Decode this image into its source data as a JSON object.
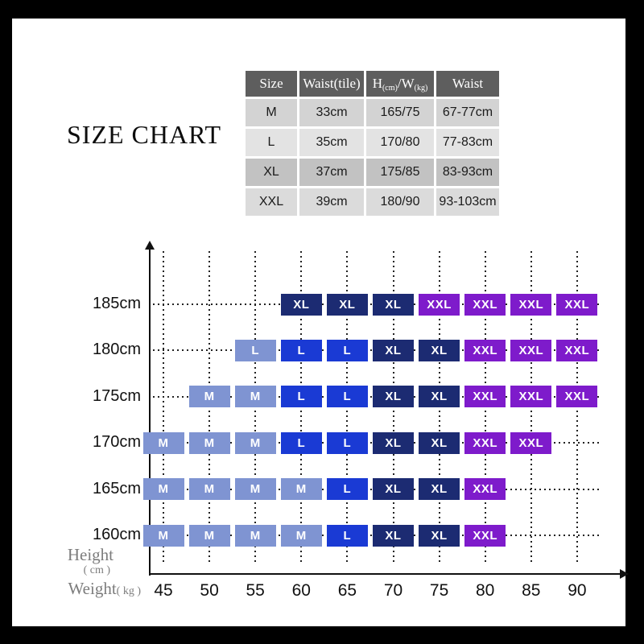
{
  "title": "SIZE CHART",
  "size_table": {
    "headers": [
      "Size",
      "Waist(tile)",
      {
        "parts": [
          "H",
          "(cm)",
          "/W",
          "(kg)"
        ]
      },
      "Waist"
    ],
    "rows": [
      {
        "size": "M",
        "waist_tile": "33cm",
        "h_w": "165/75",
        "waist": "67-77cm",
        "bg": "#d3d3d3"
      },
      {
        "size": "L",
        "waist_tile": "35cm",
        "h_w": "170/80",
        "waist": "77-83cm",
        "bg": "#e3e3e3"
      },
      {
        "size": "XL",
        "waist_tile": "37cm",
        "h_w": "175/85",
        "waist": "83-93cm",
        "bg": "#c2c2c2"
      },
      {
        "size": "XXL",
        "waist_tile": "39cm",
        "h_w": "180/90",
        "waist": "93-103cm",
        "bg": "#dbdbdb"
      }
    ]
  },
  "chart_data": {
    "type": "scatter",
    "title": "SIZE CHART",
    "xlabel_main": "Weight",
    "xlabel_unit": "( kg )",
    "ylabel_line1": "Height",
    "ylabel_line2": "( cm )",
    "x_ticks": [
      45,
      50,
      55,
      60,
      65,
      70,
      75,
      80,
      85,
      90
    ],
    "y_ticks": [
      "185cm",
      "180cm",
      "175cm",
      "170cm",
      "165cm",
      "160cm"
    ],
    "grid": "dotted",
    "legend_position": "none",
    "size_colors": {
      "M": "#7f94d2",
      "L": "#1a3ad4",
      "XL": "#1c2b72",
      "XXL": "#7e1bcb",
      "L_light": "#7f94d2"
    },
    "matrix": [
      {
        "height": "185cm",
        "cells": [
          {
            "weight": 60,
            "size": "XL"
          },
          {
            "weight": 65,
            "size": "XL"
          },
          {
            "weight": 70,
            "size": "XL"
          },
          {
            "weight": 75,
            "size": "XXL"
          },
          {
            "weight": 80,
            "size": "XXL"
          },
          {
            "weight": 85,
            "size": "XXL"
          },
          {
            "weight": 90,
            "size": "XXL"
          }
        ]
      },
      {
        "height": "180cm",
        "cells": [
          {
            "weight": 55,
            "size": "L",
            "variant": "light"
          },
          {
            "weight": 60,
            "size": "L"
          },
          {
            "weight": 65,
            "size": "L"
          },
          {
            "weight": 70,
            "size": "XL"
          },
          {
            "weight": 75,
            "size": "XL"
          },
          {
            "weight": 80,
            "size": "XXL"
          },
          {
            "weight": 85,
            "size": "XXL"
          },
          {
            "weight": 90,
            "size": "XXL"
          }
        ]
      },
      {
        "height": "175cm",
        "cells": [
          {
            "weight": 50,
            "size": "M"
          },
          {
            "weight": 55,
            "size": "M"
          },
          {
            "weight": 60,
            "size": "L"
          },
          {
            "weight": 65,
            "size": "L"
          },
          {
            "weight": 70,
            "size": "XL"
          },
          {
            "weight": 75,
            "size": "XL"
          },
          {
            "weight": 80,
            "size": "XXL"
          },
          {
            "weight": 85,
            "size": "XXL"
          },
          {
            "weight": 90,
            "size": "XXL"
          }
        ]
      },
      {
        "height": "170cm",
        "cells": [
          {
            "weight": 45,
            "size": "M"
          },
          {
            "weight": 50,
            "size": "M"
          },
          {
            "weight": 55,
            "size": "M"
          },
          {
            "weight": 60,
            "size": "L"
          },
          {
            "weight": 65,
            "size": "L"
          },
          {
            "weight": 70,
            "size": "XL"
          },
          {
            "weight": 75,
            "size": "XL"
          },
          {
            "weight": 80,
            "size": "XXL"
          },
          {
            "weight": 85,
            "size": "XXL"
          }
        ]
      },
      {
        "height": "165cm",
        "cells": [
          {
            "weight": 45,
            "size": "M"
          },
          {
            "weight": 50,
            "size": "M"
          },
          {
            "weight": 55,
            "size": "M"
          },
          {
            "weight": 60,
            "size": "M"
          },
          {
            "weight": 65,
            "size": "L"
          },
          {
            "weight": 70,
            "size": "XL"
          },
          {
            "weight": 75,
            "size": "XL"
          },
          {
            "weight": 80,
            "size": "XXL"
          }
        ]
      },
      {
        "height": "160cm",
        "cells": [
          {
            "weight": 45,
            "size": "M"
          },
          {
            "weight": 50,
            "size": "M"
          },
          {
            "weight": 55,
            "size": "M"
          },
          {
            "weight": 60,
            "size": "M"
          },
          {
            "weight": 65,
            "size": "L"
          },
          {
            "weight": 70,
            "size": "XL"
          },
          {
            "weight": 75,
            "size": "XL"
          },
          {
            "weight": 80,
            "size": "XXL"
          }
        ]
      }
    ]
  }
}
